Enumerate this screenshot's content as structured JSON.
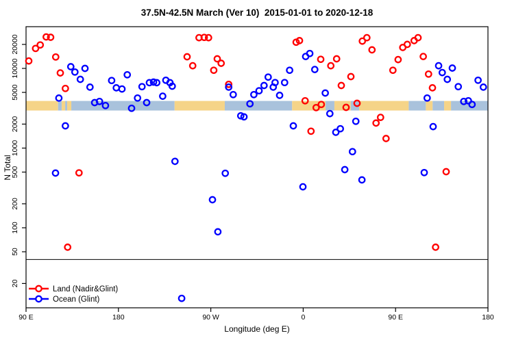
{
  "chart_data": {
    "type": "scatter",
    "title": "37.5N-42.5N March (Ver 10)  2015-01-01 to 2020-12-18",
    "xlabel": "Longitude (deg E)",
    "ylabel": "N Total",
    "x_axis": {
      "note": "axis spans 450 degrees eastward starting at 90E (wraps past 180 and repeats 0-180)",
      "tick_positions_deg": [
        0,
        90,
        180,
        270,
        360,
        450
      ],
      "tick_labels": [
        "90 E",
        "180",
        "90 W",
        "0",
        "90 E",
        "180"
      ]
    },
    "y_axis": {
      "scale": "log",
      "ticks": [
        20,
        50,
        100,
        200,
        500,
        1000,
        2000,
        5000,
        10000,
        20000
      ],
      "range": [
        10,
        33000
      ]
    },
    "threshold_line_n": 40,
    "land_ocean_band": {
      "center_n": 3400,
      "land_color": "#F5D488",
      "ocean_color": "#A9C2DC",
      "segments": [
        {
          "from": 0,
          "to": 31.2,
          "type": "land"
        },
        {
          "from": 31.2,
          "to": 34.7,
          "type": "ocean"
        },
        {
          "from": 34.7,
          "to": 38.1,
          "type": "land"
        },
        {
          "from": 38.1,
          "to": 40.1,
          "type": "ocean"
        },
        {
          "from": 40.1,
          "to": 44.1,
          "type": "land"
        },
        {
          "from": 44.1,
          "to": 144.7,
          "type": "ocean"
        },
        {
          "from": 144.7,
          "to": 193.6,
          "type": "land"
        },
        {
          "from": 193.6,
          "to": 259.2,
          "type": "ocean"
        },
        {
          "from": 259.2,
          "to": 291.8,
          "type": "land"
        },
        {
          "from": 291.8,
          "to": 300.4,
          "type": "ocean"
        },
        {
          "from": 300.4,
          "to": 316.4,
          "type": "land"
        },
        {
          "from": 316.4,
          "to": 324.5,
          "type": "ocean"
        },
        {
          "from": 324.5,
          "to": 372.8,
          "type": "land"
        },
        {
          "from": 372.8,
          "to": 389.5,
          "type": "ocean"
        },
        {
          "from": 389.5,
          "to": 396.1,
          "type": "land"
        },
        {
          "from": 396.1,
          "to": 407.3,
          "type": "ocean"
        },
        {
          "from": 407.3,
          "to": 414.0,
          "type": "land"
        },
        {
          "from": 414.0,
          "to": 450.0,
          "type": "ocean"
        }
      ]
    },
    "series": [
      {
        "name": "Land (Nadir&Glint)",
        "color": "#FF0000",
        "points": [
          [
            2.7,
            12400
          ],
          [
            9.3,
            17800
          ],
          [
            13.8,
            19700
          ],
          [
            19.6,
            24800
          ],
          [
            24.0,
            24600
          ],
          [
            28.9,
            13900
          ],
          [
            33.4,
            8770
          ],
          [
            38.3,
            5600
          ],
          [
            51.6,
            489
          ],
          [
            40.5,
            57
          ],
          [
            156.9,
            14000
          ],
          [
            162.4,
            10800
          ],
          [
            168.5,
            24300
          ],
          [
            173.6,
            24500
          ],
          [
            177.8,
            24300
          ],
          [
            182.9,
            9480
          ],
          [
            186.3,
            13200
          ],
          [
            190.1,
            11600
          ],
          [
            197.4,
            6310
          ],
          [
            263.1,
            21300
          ],
          [
            266.4,
            22300
          ],
          [
            287.1,
            13000
          ],
          [
            296.9,
            10800
          ],
          [
            302.6,
            13200
          ],
          [
            271.9,
            3930
          ],
          [
            282.6,
            3220
          ],
          [
            287.6,
            3530
          ],
          [
            277.6,
            1630
          ],
          [
            307.1,
            6100
          ],
          [
            311.8,
            3240
          ],
          [
            316.5,
            7890
          ],
          [
            322.5,
            3650
          ],
          [
            327.6,
            22000
          ],
          [
            332.0,
            24300
          ],
          [
            337.0,
            17100
          ],
          [
            345.4,
            2430
          ],
          [
            341.0,
            2060
          ],
          [
            350.7,
            1320
          ],
          [
            357.4,
            9480
          ],
          [
            362.5,
            12900
          ],
          [
            367.0,
            18300
          ],
          [
            371.4,
            20000
          ],
          [
            378.1,
            22300
          ],
          [
            381.9,
            24300
          ],
          [
            387.0,
            14100
          ],
          [
            392.1,
            8490
          ],
          [
            395.9,
            5710
          ],
          [
            409.3,
            506
          ],
          [
            399.0,
            57
          ]
        ]
      },
      {
        "name": "Ocean (Glint)",
        "color": "#0000FF",
        "points": [
          [
            43.6,
            10500
          ],
          [
            47.6,
            9000
          ],
          [
            52.9,
            7290
          ],
          [
            57.4,
            10000
          ],
          [
            62.3,
            5820
          ],
          [
            38.3,
            1900
          ],
          [
            28.7,
            486
          ],
          [
            32.0,
            4240
          ],
          [
            83.4,
            7050
          ],
          [
            87.9,
            5710
          ],
          [
            93.5,
            5520
          ],
          [
            98.6,
            8320
          ],
          [
            102.8,
            3160
          ],
          [
            108.6,
            4250
          ],
          [
            113.0,
            5900
          ],
          [
            117.5,
            3720
          ],
          [
            120.2,
            6610
          ],
          [
            124.2,
            6730
          ],
          [
            127.3,
            6610
          ],
          [
            133.1,
            4480
          ],
          [
            136.2,
            7100
          ],
          [
            140.2,
            6610
          ],
          [
            142.4,
            5980
          ],
          [
            66.8,
            3720
          ],
          [
            71.6,
            3850
          ],
          [
            77.4,
            3420
          ],
          [
            145.1,
            681
          ],
          [
            151.6,
            13
          ],
          [
            194.1,
            483
          ],
          [
            197.4,
            5820
          ],
          [
            201.8,
            4690
          ],
          [
            209.2,
            2540
          ],
          [
            212.3,
            2470
          ],
          [
            218.1,
            3600
          ],
          [
            221.9,
            4690
          ],
          [
            227.0,
            5240
          ],
          [
            231.9,
            6100
          ],
          [
            235.9,
            7780
          ],
          [
            240.8,
            5820
          ],
          [
            242.6,
            6640
          ],
          [
            247.0,
            4590
          ],
          [
            251.9,
            6640
          ],
          [
            256.8,
            9480
          ],
          [
            181.6,
            225
          ],
          [
            186.9,
            89
          ],
          [
            260.4,
            1900
          ],
          [
            269.7,
            327
          ],
          [
            272.4,
            14100
          ],
          [
            276.4,
            15400
          ],
          [
            281.3,
            9680
          ],
          [
            291.5,
            4910
          ],
          [
            296.0,
            2710
          ],
          [
            301.8,
            1580
          ],
          [
            306.2,
            1750
          ],
          [
            310.5,
            537
          ],
          [
            318.0,
            902
          ],
          [
            321.3,
            2170
          ],
          [
            327.2,
            399
          ],
          [
            387.9,
            493
          ],
          [
            390.8,
            4250
          ],
          [
            396.6,
            1860
          ],
          [
            401.9,
            10800
          ],
          [
            405.5,
            8870
          ],
          [
            410.4,
            7290
          ],
          [
            415.3,
            10100
          ],
          [
            421.1,
            5900
          ],
          [
            426.4,
            3850
          ],
          [
            430.9,
            3930
          ],
          [
            434.5,
            3530
          ],
          [
            440.4,
            7100
          ],
          [
            445.5,
            5820
          ]
        ]
      }
    ],
    "legend": {
      "position": "bottom-left",
      "items": [
        "Land (Nadir&Glint)",
        "Ocean (Glint)"
      ]
    }
  }
}
